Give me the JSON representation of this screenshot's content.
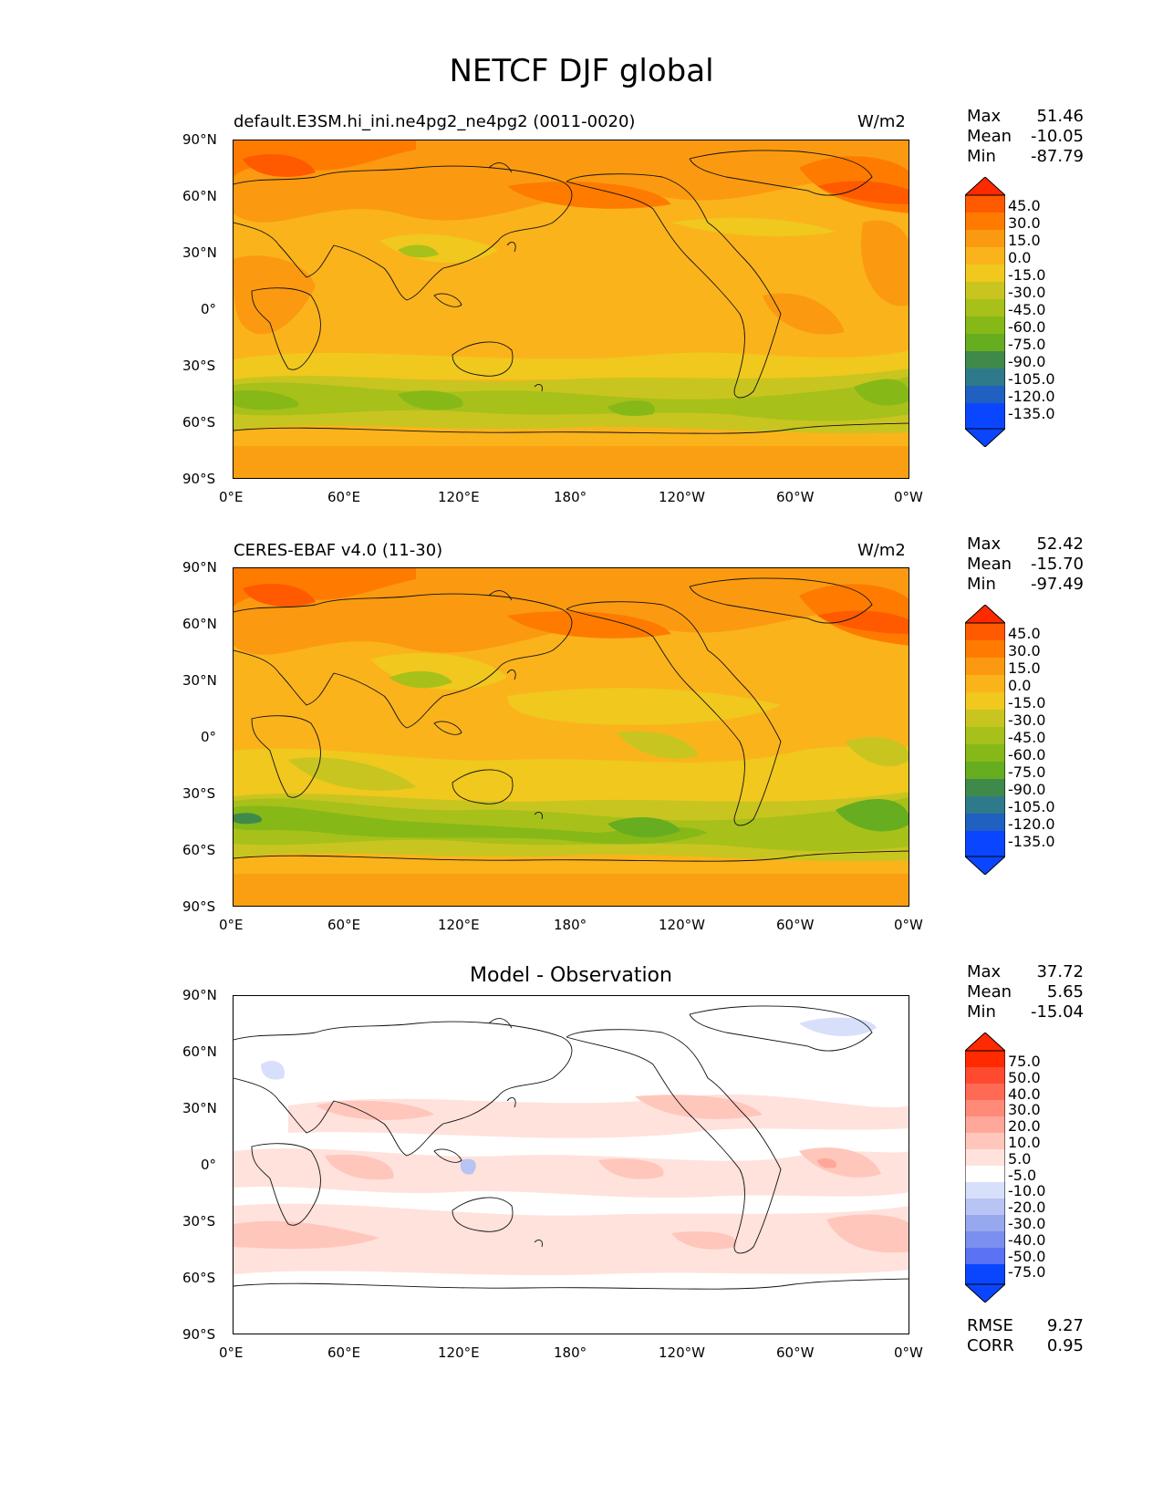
{
  "figure": {
    "title": "NETCF DJF global"
  },
  "axes": {
    "lat_ticks": [
      "90°N",
      "60°N",
      "30°N",
      "0°",
      "30°S",
      "60°S",
      "90°S"
    ],
    "lon_ticks": [
      "0°E",
      "60°E",
      "120°E",
      "180°",
      "120°W",
      "60°W",
      "0°W"
    ]
  },
  "panels": [
    {
      "id": "model",
      "title_left": "default.E3SM.hi_ini.ne4pg2_ne4pg2 (0011-0020)",
      "title_right": "W/m2",
      "stats": {
        "max_label": "Max",
        "max": "51.46",
        "mean_label": "Mean",
        "mean": "-10.05",
        "min_label": "Min",
        "min": "-87.79"
      },
      "colorbar_labels": [
        "45.0",
        "30.0",
        "15.0",
        "0.0",
        "-15.0",
        "-30.0",
        "-45.0",
        "-60.0",
        "-75.0",
        "-90.0",
        "-105.0",
        "-120.0",
        "-135.0"
      ]
    },
    {
      "id": "obs",
      "title_left": "CERES-EBAF v4.0 (11-30)",
      "title_right": "W/m2",
      "stats": {
        "max_label": "Max",
        "max": "52.42",
        "mean_label": "Mean",
        "mean": "-15.70",
        "min_label": "Min",
        "min": "-97.49"
      },
      "colorbar_labels": [
        "45.0",
        "30.0",
        "15.0",
        "0.0",
        "-15.0",
        "-30.0",
        "-45.0",
        "-60.0",
        "-75.0",
        "-90.0",
        "-105.0",
        "-120.0",
        "-135.0"
      ]
    },
    {
      "id": "diff",
      "title_center": "Model - Observation",
      "stats": {
        "max_label": "Max",
        "max": "37.72",
        "mean_label": "Mean",
        "mean": "5.65",
        "min_label": "Min",
        "min": "-15.04"
      },
      "colorbar_labels": [
        "75.0",
        "50.0",
        "40.0",
        "30.0",
        "20.0",
        "10.0",
        "5.0",
        "-5.0",
        "-10.0",
        "-20.0",
        "-30.0",
        "-40.0",
        "-50.0",
        "-75.0"
      ],
      "metrics": {
        "rmse_label": "RMSE",
        "rmse": "9.27",
        "corr_label": "CORR",
        "corr": "0.95"
      }
    }
  ],
  "colors": {
    "field_ramp": [
      "#ff2a00",
      "#ff5a00",
      "#ff7b00",
      "#fb9a10",
      "#fbb31c",
      "#f0c81e",
      "#c8c520",
      "#a8c01a",
      "#86b818",
      "#66ad20",
      "#3f8a4a",
      "#2f7a8a",
      "#1f60c0",
      "#0a46ff"
    ],
    "diff_ramp": [
      "#ff2a00",
      "#ff4a30",
      "#ff6a55",
      "#ff8a78",
      "#ffa79a",
      "#ffc6bc",
      "#ffe2dc",
      "#ffffff",
      "#d8dffa",
      "#b8c4f4",
      "#97a8ef",
      "#7a8ff0",
      "#5a72f4",
      "#3a55f8",
      "#0a46ff"
    ]
  }
}
